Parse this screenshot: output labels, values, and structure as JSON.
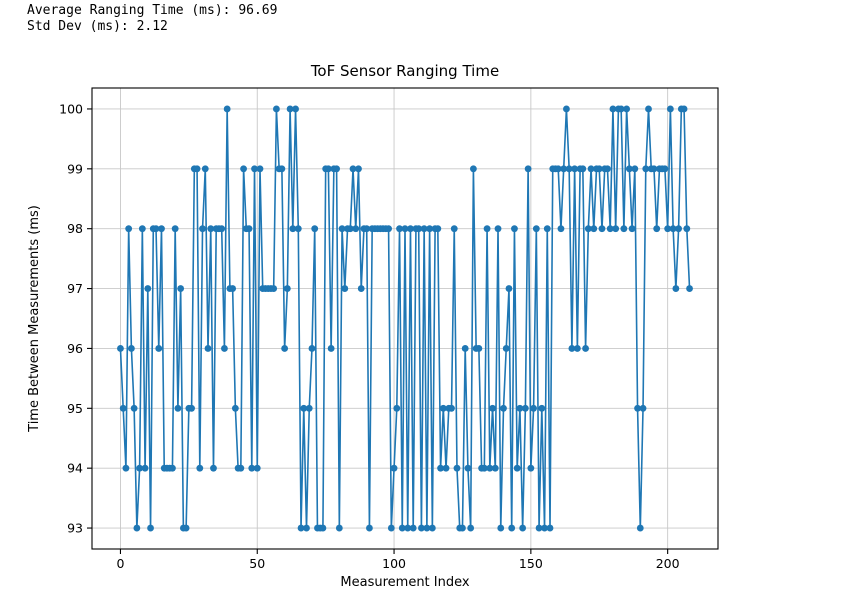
{
  "header": {
    "line1": "Average Ranging Time (ms): 96.69",
    "line2": "Std Dev (ms): 2.12"
  },
  "chart_data": {
    "type": "line",
    "title": "ToF Sensor Ranging Time",
    "xlabel": "Measurement Index",
    "ylabel": "Time Between Measurements (ms)",
    "x_is_index": true,
    "x_ticks": [
      0,
      50,
      100,
      150,
      200
    ],
    "y_ticks": [
      93,
      94,
      95,
      96,
      97,
      98,
      99,
      100
    ],
    "xlim": [
      -10.4,
      218.4
    ],
    "ylim": [
      92.65,
      100.35
    ],
    "grid": true,
    "legend": "none",
    "line_color": "#1f77b4",
    "marker": "o",
    "marker_size": 3.4,
    "line_width": 1.6,
    "grid_color": "#c8c8c8",
    "spine_color": "#000000",
    "values": [
      96,
      95,
      94,
      98,
      96,
      95,
      93,
      94,
      98,
      94,
      97,
      93,
      98,
      98,
      96,
      98,
      94,
      94,
      94,
      94,
      98,
      95,
      97,
      93,
      93,
      95,
      95,
      99,
      99,
      94,
      98,
      99,
      96,
      98,
      94,
      98,
      98,
      98,
      96,
      100,
      97,
      97,
      95,
      94,
      94,
      99,
      98,
      98,
      94,
      99,
      94,
      99,
      97,
      97,
      97,
      97,
      97,
      100,
      99,
      99,
      96,
      97,
      100,
      98,
      100,
      98,
      93,
      95,
      93,
      95,
      96,
      98,
      93,
      93,
      93,
      99,
      99,
      96,
      99,
      99,
      93,
      98,
      97,
      98,
      98,
      99,
      98,
      99,
      97,
      98,
      98,
      93,
      98,
      98,
      98,
      98,
      98,
      98,
      98,
      93,
      94,
      95,
      98,
      93,
      98,
      93,
      98,
      93,
      98,
      98,
      93,
      98,
      93,
      98,
      93,
      98,
      98,
      94,
      95,
      94,
      95,
      95,
      98,
      94,
      93,
      93,
      96,
      94,
      93,
      99,
      96,
      96,
      94,
      94,
      98,
      94,
      95,
      94,
      98,
      93,
      95,
      96,
      97,
      93,
      98,
      94,
      95,
      93,
      95,
      99,
      94,
      95,
      98,
      93,
      95,
      93,
      98,
      93,
      99,
      99,
      99,
      98,
      99,
      100,
      99,
      96,
      99,
      96,
      99,
      99,
      96,
      98,
      99,
      98,
      99,
      99,
      98,
      99,
      99,
      98,
      100,
      98,
      100,
      100,
      98,
      100,
      99,
      98,
      99,
      95,
      93,
      95,
      99,
      100,
      99,
      99,
      98,
      99,
      99,
      99,
      98,
      100,
      98,
      97,
      98,
      100,
      100,
      98,
      97
    ],
    "stats": {
      "average_ms": 96.69,
      "std_dev_ms": 2.12
    }
  }
}
